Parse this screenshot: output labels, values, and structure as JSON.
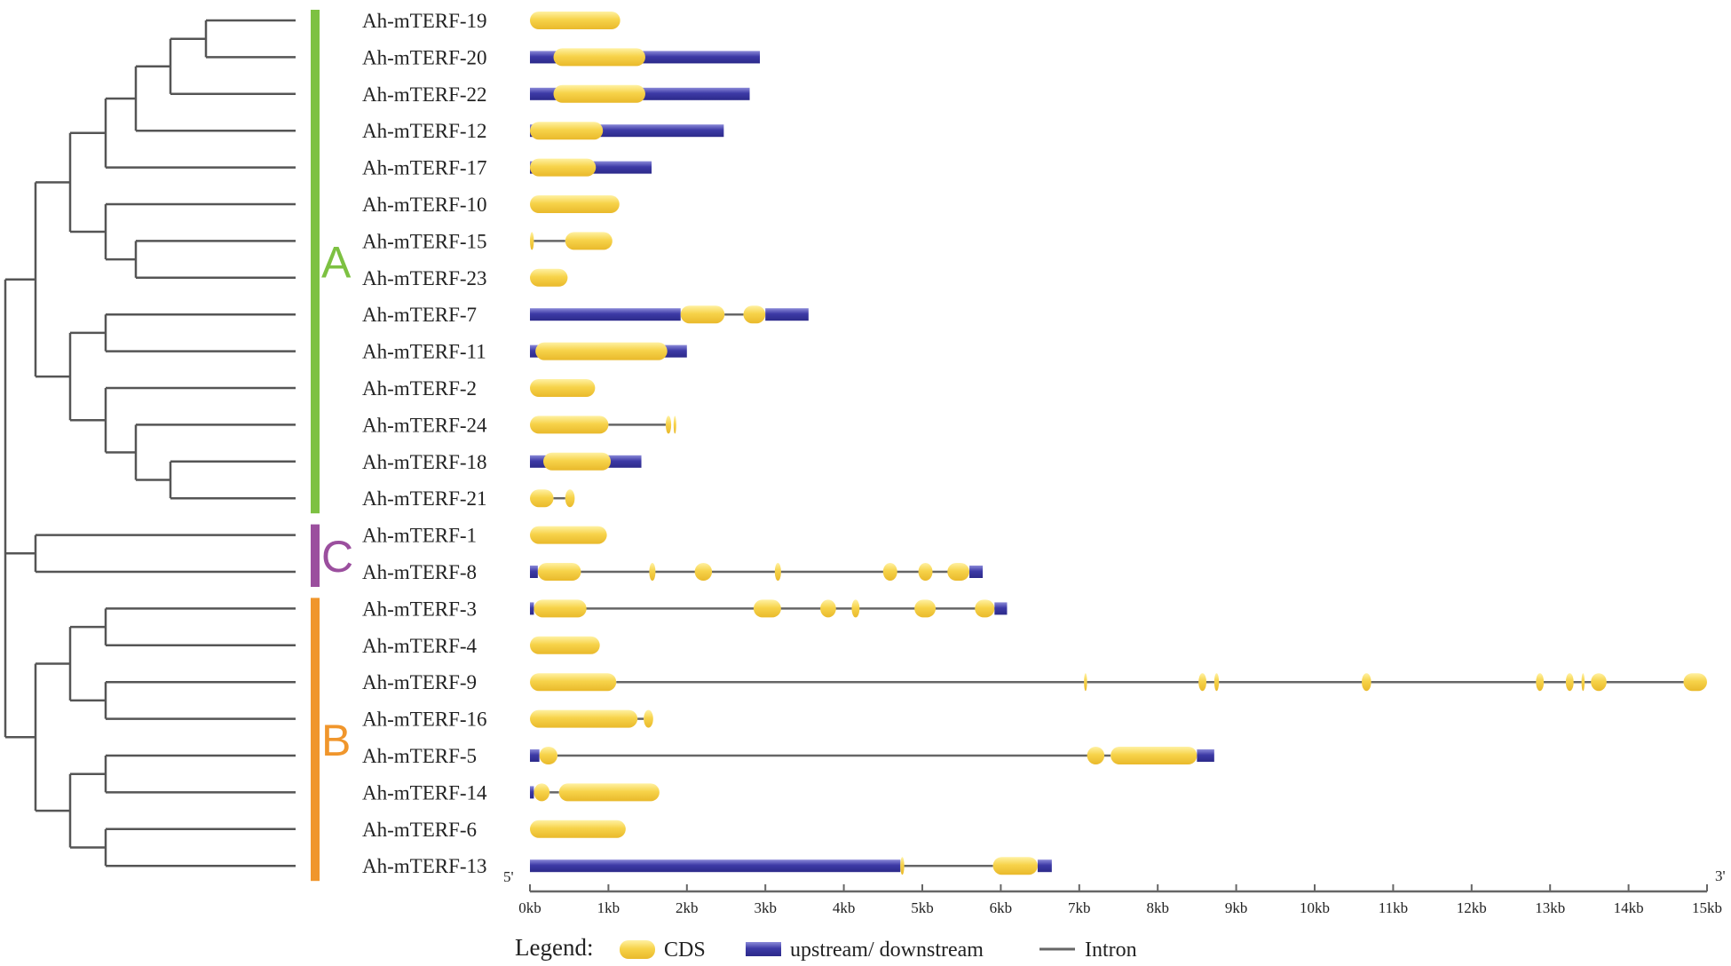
{
  "genes": [
    {
      "name": "Ah-mTERF-19",
      "features": [
        [
          "cds",
          0,
          1.15
        ]
      ]
    },
    {
      "name": "Ah-mTERF-20",
      "features": [
        [
          "utr",
          0,
          2.93
        ],
        [
          "cds",
          0.3,
          1.47
        ]
      ]
    },
    {
      "name": "Ah-mTERF-22",
      "features": [
        [
          "utr",
          0,
          2.8
        ],
        [
          "cds",
          0.3,
          1.47
        ]
      ]
    },
    {
      "name": "Ah-mTERF-12",
      "features": [
        [
          "utr",
          0,
          2.47
        ],
        [
          "cds",
          0,
          0.93
        ]
      ]
    },
    {
      "name": "Ah-mTERF-17",
      "features": [
        [
          "utr",
          0,
          1.55
        ],
        [
          "cds",
          0,
          0.84
        ]
      ]
    },
    {
      "name": "Ah-mTERF-10",
      "features": [
        [
          "cds",
          0,
          1.14
        ]
      ]
    },
    {
      "name": "Ah-mTERF-15",
      "features": [
        [
          "intron",
          0.05,
          0.45
        ],
        [
          "cds",
          0,
          0.05
        ],
        [
          "cds",
          0.45,
          1.05
        ]
      ]
    },
    {
      "name": "Ah-mTERF-23",
      "features": [
        [
          "cds",
          0,
          0.48
        ]
      ]
    },
    {
      "name": "Ah-mTERF-7",
      "features": [
        [
          "utr",
          0,
          1.92
        ],
        [
          "cds",
          1.92,
          2.48
        ],
        [
          "intron",
          2.48,
          2.72
        ],
        [
          "cds",
          2.72,
          3.0
        ],
        [
          "utr",
          3.0,
          3.55
        ]
      ]
    },
    {
      "name": "Ah-mTERF-11",
      "features": [
        [
          "utr",
          0,
          2.0
        ],
        [
          "cds",
          0.07,
          1.75
        ]
      ]
    },
    {
      "name": "Ah-mTERF-2",
      "features": [
        [
          "cds",
          0,
          0.83
        ]
      ]
    },
    {
      "name": "Ah-mTERF-24",
      "features": [
        [
          "intron",
          1.0,
          1.73
        ],
        [
          "cds",
          0,
          1.0
        ],
        [
          "cds",
          1.73,
          1.8
        ],
        [
          "cds",
          1.83,
          1.86
        ]
      ]
    },
    {
      "name": "Ah-mTERF-18",
      "features": [
        [
          "utr",
          0,
          1.42
        ],
        [
          "cds",
          0.17,
          1.03
        ]
      ]
    },
    {
      "name": "Ah-mTERF-21",
      "features": [
        [
          "intron",
          0.3,
          0.45
        ],
        [
          "cds",
          0,
          0.3
        ],
        [
          "cds",
          0.45,
          0.57
        ]
      ]
    },
    {
      "name": "Ah-mTERF-1",
      "features": [
        [
          "cds",
          0,
          0.98
        ]
      ]
    },
    {
      "name": "Ah-mTERF-8",
      "features": [
        [
          "intron",
          0.1,
          5.6
        ],
        [
          "utr",
          0,
          0.1
        ],
        [
          "cds",
          0.1,
          0.65
        ],
        [
          "cds",
          1.52,
          1.6
        ],
        [
          "cds",
          2.1,
          2.32
        ],
        [
          "cds",
          3.12,
          3.2
        ],
        [
          "cds",
          4.5,
          4.68
        ],
        [
          "cds",
          4.95,
          5.13
        ],
        [
          "cds",
          5.32,
          5.6
        ],
        [
          "utr",
          5.6,
          5.77
        ]
      ]
    },
    {
      "name": "Ah-mTERF-3",
      "features": [
        [
          "intron",
          0.05,
          5.92
        ],
        [
          "utr",
          0,
          0.05
        ],
        [
          "cds",
          0.05,
          0.72
        ],
        [
          "cds",
          2.85,
          3.2
        ],
        [
          "cds",
          3.7,
          3.9
        ],
        [
          "cds",
          4.1,
          4.2
        ],
        [
          "cds",
          4.9,
          5.17
        ],
        [
          "cds",
          5.67,
          5.92
        ],
        [
          "utr",
          5.92,
          6.08
        ]
      ]
    },
    {
      "name": "Ah-mTERF-4",
      "features": [
        [
          "cds",
          0,
          0.89
        ]
      ]
    },
    {
      "name": "Ah-mTERF-9",
      "features": [
        [
          "intron",
          1.1,
          14.85
        ],
        [
          "cds",
          0,
          1.1
        ],
        [
          "cds",
          7.06,
          7.1
        ],
        [
          "cds",
          8.52,
          8.62
        ],
        [
          "cds",
          8.72,
          8.78
        ],
        [
          "cds",
          10.6,
          10.72
        ],
        [
          "cds",
          12.82,
          12.92
        ],
        [
          "cds",
          13.2,
          13.3
        ],
        [
          "cds",
          13.4,
          13.44
        ],
        [
          "cds",
          13.52,
          13.72
        ],
        [
          "cds",
          14.7,
          15.0
        ]
      ]
    },
    {
      "name": "Ah-mTERF-16",
      "features": [
        [
          "intron",
          1.37,
          1.45
        ],
        [
          "cds",
          0,
          1.37
        ],
        [
          "cds",
          1.45,
          1.57
        ]
      ]
    },
    {
      "name": "Ah-mTERF-5",
      "features": [
        [
          "intron",
          0.35,
          7.4
        ],
        [
          "utr",
          0,
          0.12
        ],
        [
          "cds",
          0.12,
          0.35
        ],
        [
          "cds",
          7.1,
          7.32
        ],
        [
          "cds",
          7.4,
          8.5
        ],
        [
          "utr",
          8.5,
          8.72
        ]
      ]
    },
    {
      "name": "Ah-mTERF-14",
      "features": [
        [
          "intron",
          0.25,
          0.37
        ],
        [
          "utr",
          0,
          0.05
        ],
        [
          "cds",
          0.05,
          0.25
        ],
        [
          "cds",
          0.37,
          1.65
        ]
      ]
    },
    {
      "name": "Ah-mTERF-6",
      "features": [
        [
          "cds",
          0,
          1.22
        ]
      ]
    },
    {
      "name": "Ah-mTERF-13",
      "features": [
        [
          "intron",
          4.75,
          5.9
        ],
        [
          "utr",
          0,
          4.72
        ],
        [
          "cds",
          4.72,
          4.77
        ],
        [
          "cds",
          5.9,
          6.47
        ],
        [
          "utr",
          6.47,
          6.65
        ]
      ]
    }
  ],
  "tree": {
    "c": [
      {
        "c": [
          {
            "c": [
              {
                "c": [
                  {
                    "c": [
                      {
                        "c": [
                          0,
                          1
                        ],
                        "d": 232
                      },
                      2
                    ],
                    "d": 192
                  },
                  3
                ],
                "d": 153
              },
              4
            ],
            "d": 119
          },
          {
            "c": [
              5,
              {
                "c": [
                  6,
                  7
                ],
                "d": 153
              }
            ],
            "d": 119
          }
        ],
        "d": 79
      },
      {
        "c": [
          {
            "c": [
              8,
              9
            ],
            "d": 119
          },
          {
            "c": [
              10,
              {
                "c": [
                  11,
                  {
                    "c": [
                      12,
                      13
                    ],
                    "d": 192
                  }
                ],
                "d": 153
              }
            ],
            "d": 119
          }
        ],
        "d": 79
      }
    ],
    "d": 40,
    "root": {
      "c": [
        "A",
        {
          "c": [
            14,
            15
          ],
          "d": 40
        },
        {
          "c": [
            {
              "c": [
                {
                  "c": [
                    16,
                    17
                  ],
                  "d": 119
                },
                {
                  "c": [
                    18,
                    19
                  ],
                  "d": 119
                }
              ],
              "d": 79
            },
            {
              "c": [
                {
                  "c": [
                    20,
                    21
                  ],
                  "d": 119
                },
                {
                  "c": [
                    22,
                    23
                  ],
                  "d": 119
                }
              ],
              "d": 79
            }
          ],
          "d": 40
        }
      ],
      "d": 6
    }
  },
  "groups": [
    {
      "label": "A",
      "color": "#7dc142",
      "from": 0,
      "to": 13
    },
    {
      "label": "C",
      "color": "#9b4f9e",
      "from": 14,
      "to": 15
    },
    {
      "label": "B",
      "color": "#f0962c",
      "from": 16,
      "to": 23
    }
  ],
  "axis": {
    "min": 0,
    "max": 15,
    "ticks": [
      "0kb",
      "1kb",
      "2kb",
      "3kb",
      "4kb",
      "5kb",
      "6kb",
      "7kb",
      "8kb",
      "9kb",
      "10kb",
      "11kb",
      "12kb",
      "13kb",
      "14kb",
      "15kb"
    ],
    "five_prime": "5'",
    "three_prime": "3'"
  },
  "legend": {
    "title": "Legend:",
    "cds": "CDS",
    "utr": "upstream/ downstream",
    "intron": "Intron"
  },
  "colors": {
    "cds_light": "#fff1a3",
    "cds": "#f7d34a",
    "cds_dark": "#e9b92b",
    "utr_light": "#8a89d8",
    "utr": "#3d3aa6",
    "utr_dark": "#2c2a8a",
    "intron": "#666666",
    "tree": "#555555",
    "axis": "#666666"
  }
}
